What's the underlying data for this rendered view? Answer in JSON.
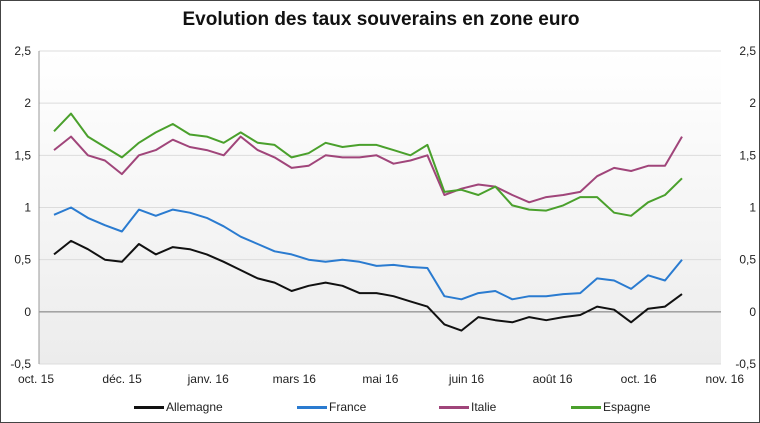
{
  "chart_data": {
    "type": "line",
    "title": "Evolution  des taux souverains en zone euro",
    "xlabel": "",
    "ylabel": "",
    "x_tick_labels": [
      "oct. 15",
      "déc. 15",
      "janv. 16",
      "mars 16",
      "mai 16",
      "juin 16",
      "août 16",
      "oct. 16",
      "nov. 16"
    ],
    "y_tick_labels": [
      "-0,5",
      "0",
      "0,5",
      "1",
      "1,5",
      "2",
      "2,5"
    ],
    "ylim": [
      -0.5,
      2.5
    ],
    "y_axis_both_sides": true,
    "grid": "horizontal",
    "legend_position": "bottom",
    "series": [
      {
        "name": "Allemagne",
        "color": "#111111",
        "values": [
          0.55,
          0.68,
          0.6,
          0.5,
          0.48,
          0.65,
          0.55,
          0.62,
          0.6,
          0.55,
          0.48,
          0.4,
          0.32,
          0.28,
          0.2,
          0.25,
          0.28,
          0.25,
          0.18,
          0.18,
          0.15,
          0.1,
          0.05,
          -0.12,
          -0.18,
          -0.05,
          -0.08,
          -0.1,
          -0.05,
          -0.08,
          -0.05,
          -0.03,
          0.05,
          0.02,
          -0.1,
          0.03,
          0.05,
          0.17
        ]
      },
      {
        "name": "France",
        "color": "#2a7bd0",
        "values": [
          0.93,
          1.0,
          0.9,
          0.83,
          0.77,
          0.98,
          0.92,
          0.98,
          0.95,
          0.9,
          0.82,
          0.72,
          0.65,
          0.58,
          0.55,
          0.5,
          0.48,
          0.5,
          0.48,
          0.44,
          0.45,
          0.43,
          0.42,
          0.15,
          0.12,
          0.18,
          0.2,
          0.12,
          0.15,
          0.15,
          0.17,
          0.18,
          0.32,
          0.3,
          0.22,
          0.35,
          0.3,
          0.5
        ]
      },
      {
        "name": "Italie",
        "color": "#a0457a",
        "values": [
          1.55,
          1.68,
          1.5,
          1.45,
          1.32,
          1.5,
          1.55,
          1.65,
          1.58,
          1.55,
          1.5,
          1.68,
          1.55,
          1.48,
          1.38,
          1.4,
          1.5,
          1.48,
          1.48,
          1.5,
          1.42,
          1.45,
          1.5,
          1.12,
          1.18,
          1.22,
          1.2,
          1.12,
          1.05,
          1.1,
          1.12,
          1.15,
          1.3,
          1.38,
          1.35,
          1.4,
          1.4,
          1.68
        ]
      },
      {
        "name": "Espagne",
        "color": "#4aa02c",
        "values": [
          1.73,
          1.9,
          1.68,
          1.58,
          1.48,
          1.62,
          1.72,
          1.8,
          1.7,
          1.68,
          1.62,
          1.72,
          1.62,
          1.6,
          1.48,
          1.52,
          1.62,
          1.58,
          1.6,
          1.6,
          1.55,
          1.5,
          1.6,
          1.15,
          1.17,
          1.12,
          1.2,
          1.02,
          0.98,
          0.97,
          1.02,
          1.1,
          1.1,
          0.95,
          0.92,
          1.05,
          1.12,
          1.28
        ]
      }
    ]
  }
}
